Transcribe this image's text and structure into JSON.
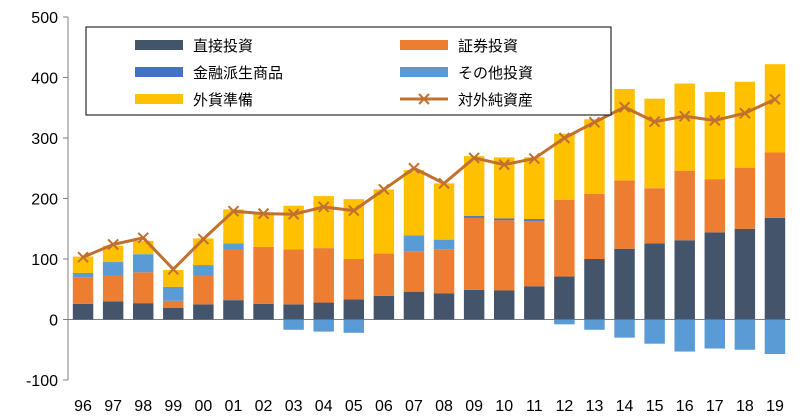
{
  "chart_data": {
    "type": "bar",
    "stacked": true,
    "categories": [
      "96",
      "97",
      "98",
      "99",
      "00",
      "01",
      "02",
      "03",
      "04",
      "05",
      "06",
      "07",
      "08",
      "09",
      "10",
      "11",
      "12",
      "13",
      "14",
      "15",
      "16",
      "17",
      "18",
      "19"
    ],
    "ylim": [
      -100,
      500
    ],
    "yticks": [
      -100,
      0,
      100,
      200,
      300,
      400,
      500
    ],
    "grid": false,
    "legend": {
      "position": "top",
      "columns": 2
    },
    "series": [
      {
        "name": "直接投資",
        "kind": "bar",
        "color": "#44546a",
        "values": [
          26,
          30,
          27,
          19,
          25,
          32,
          26,
          25,
          28,
          33,
          39,
          46,
          43,
          49,
          48,
          55,
          71,
          100,
          117,
          126,
          131,
          144,
          150,
          168
        ]
      },
      {
        "name": "証券投資",
        "kind": "bar",
        "color": "#ed7d31",
        "values": [
          44,
          42,
          51,
          12,
          47,
          83,
          94,
          91,
          90,
          67,
          70,
          66,
          73,
          119,
          116,
          108,
          127,
          108,
          113,
          91,
          115,
          88,
          101,
          108
        ]
      },
      {
        "name": "金融派生商品",
        "kind": "bar",
        "color": "#4472c4",
        "values": [
          0,
          0,
          0,
          0,
          0,
          0,
          0,
          0,
          0,
          0,
          0,
          0,
          0,
          3,
          3,
          3,
          0,
          0,
          0,
          0,
          0,
          0,
          0,
          0
        ]
      },
      {
        "name": "その他投資",
        "kind": "bar",
        "color": "#5b9bd5",
        "values": [
          7,
          23,
          30,
          23,
          18,
          11,
          0,
          -17,
          -20,
          -22,
          0,
          27,
          16,
          0,
          0,
          0,
          -8,
          -17,
          -30,
          -40,
          -53,
          -48,
          -50,
          -57
        ]
      },
      {
        "name": "外貨準備",
        "kind": "bar",
        "color": "#ffc000",
        "values": [
          27,
          27,
          22,
          28,
          44,
          56,
          55,
          72,
          86,
          99,
          106,
          108,
          93,
          99,
          101,
          102,
          109,
          123,
          151,
          148,
          144,
          144,
          142,
          146
        ]
      },
      {
        "name": "対外純資産",
        "kind": "line",
        "color": "#c0702f",
        "values": [
          103,
          124,
          135,
          83,
          133,
          179,
          175,
          174,
          186,
          180,
          215,
          250,
          225,
          267,
          256,
          266,
          300,
          326,
          351,
          327,
          336,
          329,
          341,
          364
        ]
      }
    ]
  }
}
